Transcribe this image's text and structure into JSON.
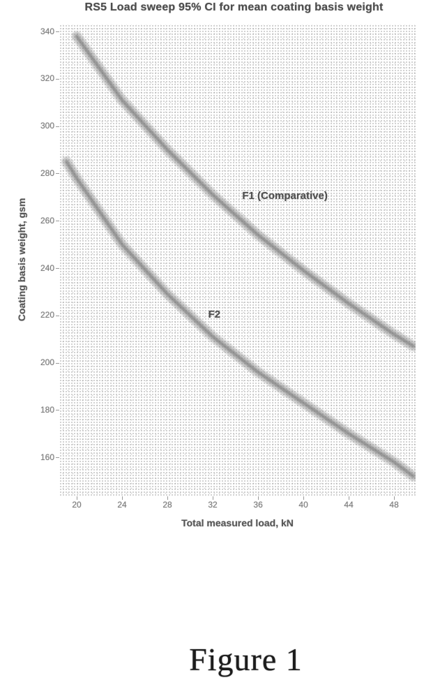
{
  "figure_caption": "Figure 1",
  "chart_data": {
    "type": "line",
    "title": "RS5 Load sweep 95% CI for mean coating basis weight",
    "xlabel": "Total measured load, kN",
    "ylabel": "Coating basis weight, gsm",
    "x_ticks": [
      20,
      24,
      28,
      32,
      36,
      40,
      44,
      48
    ],
    "y_ticks": [
      340,
      320,
      300,
      280,
      260,
      240,
      220,
      200,
      180,
      160
    ],
    "xlim": [
      18.46,
      49.9
    ],
    "ylim": [
      143.5,
      343
    ],
    "grid": "fine dotted grid over entire plot area",
    "legend_position": "inline curve annotations",
    "band_style": "95% confidence interval band, fuzzy gray",
    "band_color": "#8f8f8f",
    "series": [
      {
        "name": "F1 (Comparative)",
        "x": [
          20,
          24,
          28,
          32,
          36,
          40,
          44,
          48,
          49.7
        ],
        "y": [
          338,
          311,
          290,
          271,
          254,
          239,
          225,
          212,
          207
        ],
        "label_anchor": {
          "x": 34.6,
          "y": 273
        }
      },
      {
        "name": "F2",
        "x": [
          19.1,
          20,
          24,
          28,
          32,
          36,
          40,
          44,
          48,
          49.7
        ],
        "y": [
          285,
          278,
          250,
          229,
          211,
          196,
          183,
          170,
          158,
          152
        ],
        "label_anchor": {
          "x": 31.6,
          "y": 223
        }
      }
    ]
  }
}
